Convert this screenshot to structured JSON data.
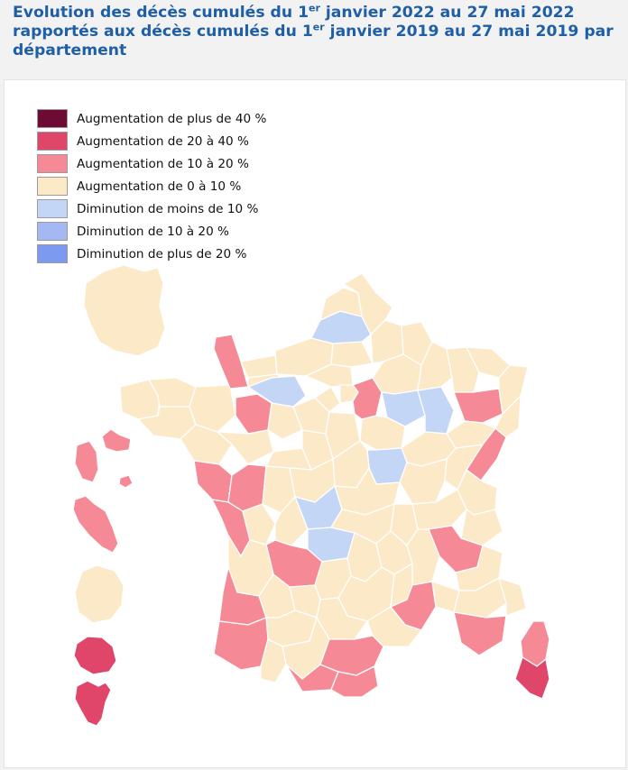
{
  "title": {
    "line1_prefix": "Evolution des décès cumulés du 1",
    "line1_sup": "er",
    "line1_suffix": " janvier 2022 au 27 mai 2022",
    "line2_prefix": "rapportés aux décès cumulés du 1",
    "line2_sup": "er",
    "line2_suffix": " janvier 2019 au 27 mai 2019 par",
    "line3": "département"
  },
  "legend": [
    {
      "label": "Augmentation de plus de 40 %",
      "color": "#6e0b34"
    },
    {
      "label": "Augmentation de 20 à 40 %",
      "color": "#e0456a"
    },
    {
      "label": "Augmentation de 10 à 20 %",
      "color": "#f58a96"
    },
    {
      "label": "Augmentation de 0 à 10 %",
      "color": "#fbe9c8"
    },
    {
      "label": "Diminution de moins de 10 %",
      "color": "#c4d6f6"
    },
    {
      "label": "Diminution de 10 à 20 %",
      "color": "#a6b8f4"
    },
    {
      "label": "Diminution de plus de 20 %",
      "color": "#7c9af0"
    }
  ]
}
